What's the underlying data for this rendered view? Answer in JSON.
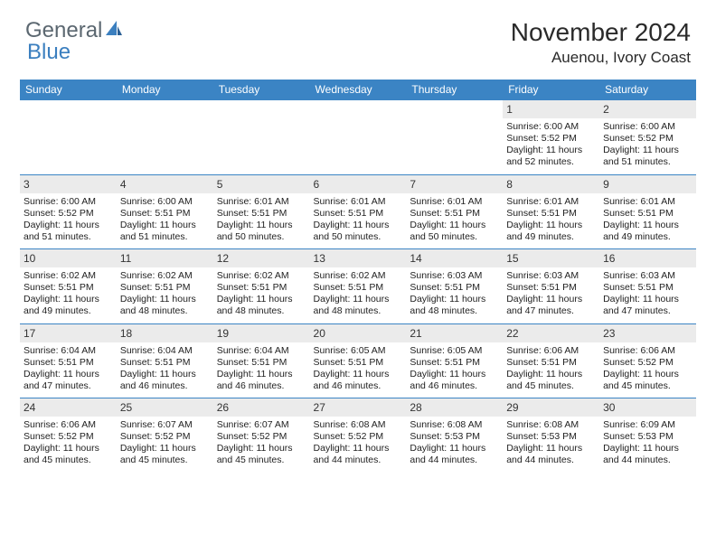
{
  "brand": {
    "text1": "General",
    "text2": "Blue"
  },
  "title": "November 2024",
  "location": "Auenou, Ivory Coast",
  "columns": [
    "Sunday",
    "Monday",
    "Tuesday",
    "Wednesday",
    "Thursday",
    "Friday",
    "Saturday"
  ],
  "colors": {
    "headerBg": "#3b84c4",
    "headerText": "#ffffff",
    "dayBarBg": "#ebebeb",
    "bodyText": "#222222",
    "rowBorder": "#3b84c4",
    "logoGray": "#5b6770",
    "logoBlue": "#3b7fbf"
  },
  "weeks": [
    [
      {
        "day": "",
        "rise": "",
        "set": "",
        "dayl": ""
      },
      {
        "day": "",
        "rise": "",
        "set": "",
        "dayl": ""
      },
      {
        "day": "",
        "rise": "",
        "set": "",
        "dayl": ""
      },
      {
        "day": "",
        "rise": "",
        "set": "",
        "dayl": ""
      },
      {
        "day": "",
        "rise": "",
        "set": "",
        "dayl": ""
      },
      {
        "day": "1",
        "rise": "Sunrise: 6:00 AM",
        "set": "Sunset: 5:52 PM",
        "dayl": "Daylight: 11 hours and 52 minutes."
      },
      {
        "day": "2",
        "rise": "Sunrise: 6:00 AM",
        "set": "Sunset: 5:52 PM",
        "dayl": "Daylight: 11 hours and 51 minutes."
      }
    ],
    [
      {
        "day": "3",
        "rise": "Sunrise: 6:00 AM",
        "set": "Sunset: 5:52 PM",
        "dayl": "Daylight: 11 hours and 51 minutes."
      },
      {
        "day": "4",
        "rise": "Sunrise: 6:00 AM",
        "set": "Sunset: 5:51 PM",
        "dayl": "Daylight: 11 hours and 51 minutes."
      },
      {
        "day": "5",
        "rise": "Sunrise: 6:01 AM",
        "set": "Sunset: 5:51 PM",
        "dayl": "Daylight: 11 hours and 50 minutes."
      },
      {
        "day": "6",
        "rise": "Sunrise: 6:01 AM",
        "set": "Sunset: 5:51 PM",
        "dayl": "Daylight: 11 hours and 50 minutes."
      },
      {
        "day": "7",
        "rise": "Sunrise: 6:01 AM",
        "set": "Sunset: 5:51 PM",
        "dayl": "Daylight: 11 hours and 50 minutes."
      },
      {
        "day": "8",
        "rise": "Sunrise: 6:01 AM",
        "set": "Sunset: 5:51 PM",
        "dayl": "Daylight: 11 hours and 49 minutes."
      },
      {
        "day": "9",
        "rise": "Sunrise: 6:01 AM",
        "set": "Sunset: 5:51 PM",
        "dayl": "Daylight: 11 hours and 49 minutes."
      }
    ],
    [
      {
        "day": "10",
        "rise": "Sunrise: 6:02 AM",
        "set": "Sunset: 5:51 PM",
        "dayl": "Daylight: 11 hours and 49 minutes."
      },
      {
        "day": "11",
        "rise": "Sunrise: 6:02 AM",
        "set": "Sunset: 5:51 PM",
        "dayl": "Daylight: 11 hours and 48 minutes."
      },
      {
        "day": "12",
        "rise": "Sunrise: 6:02 AM",
        "set": "Sunset: 5:51 PM",
        "dayl": "Daylight: 11 hours and 48 minutes."
      },
      {
        "day": "13",
        "rise": "Sunrise: 6:02 AM",
        "set": "Sunset: 5:51 PM",
        "dayl": "Daylight: 11 hours and 48 minutes."
      },
      {
        "day": "14",
        "rise": "Sunrise: 6:03 AM",
        "set": "Sunset: 5:51 PM",
        "dayl": "Daylight: 11 hours and 48 minutes."
      },
      {
        "day": "15",
        "rise": "Sunrise: 6:03 AM",
        "set": "Sunset: 5:51 PM",
        "dayl": "Daylight: 11 hours and 47 minutes."
      },
      {
        "day": "16",
        "rise": "Sunrise: 6:03 AM",
        "set": "Sunset: 5:51 PM",
        "dayl": "Daylight: 11 hours and 47 minutes."
      }
    ],
    [
      {
        "day": "17",
        "rise": "Sunrise: 6:04 AM",
        "set": "Sunset: 5:51 PM",
        "dayl": "Daylight: 11 hours and 47 minutes."
      },
      {
        "day": "18",
        "rise": "Sunrise: 6:04 AM",
        "set": "Sunset: 5:51 PM",
        "dayl": "Daylight: 11 hours and 46 minutes."
      },
      {
        "day": "19",
        "rise": "Sunrise: 6:04 AM",
        "set": "Sunset: 5:51 PM",
        "dayl": "Daylight: 11 hours and 46 minutes."
      },
      {
        "day": "20",
        "rise": "Sunrise: 6:05 AM",
        "set": "Sunset: 5:51 PM",
        "dayl": "Daylight: 11 hours and 46 minutes."
      },
      {
        "day": "21",
        "rise": "Sunrise: 6:05 AM",
        "set": "Sunset: 5:51 PM",
        "dayl": "Daylight: 11 hours and 46 minutes."
      },
      {
        "day": "22",
        "rise": "Sunrise: 6:06 AM",
        "set": "Sunset: 5:51 PM",
        "dayl": "Daylight: 11 hours and 45 minutes."
      },
      {
        "day": "23",
        "rise": "Sunrise: 6:06 AM",
        "set": "Sunset: 5:52 PM",
        "dayl": "Daylight: 11 hours and 45 minutes."
      }
    ],
    [
      {
        "day": "24",
        "rise": "Sunrise: 6:06 AM",
        "set": "Sunset: 5:52 PM",
        "dayl": "Daylight: 11 hours and 45 minutes."
      },
      {
        "day": "25",
        "rise": "Sunrise: 6:07 AM",
        "set": "Sunset: 5:52 PM",
        "dayl": "Daylight: 11 hours and 45 minutes."
      },
      {
        "day": "26",
        "rise": "Sunrise: 6:07 AM",
        "set": "Sunset: 5:52 PM",
        "dayl": "Daylight: 11 hours and 45 minutes."
      },
      {
        "day": "27",
        "rise": "Sunrise: 6:08 AM",
        "set": "Sunset: 5:52 PM",
        "dayl": "Daylight: 11 hours and 44 minutes."
      },
      {
        "day": "28",
        "rise": "Sunrise: 6:08 AM",
        "set": "Sunset: 5:53 PM",
        "dayl": "Daylight: 11 hours and 44 minutes."
      },
      {
        "day": "29",
        "rise": "Sunrise: 6:08 AM",
        "set": "Sunset: 5:53 PM",
        "dayl": "Daylight: 11 hours and 44 minutes."
      },
      {
        "day": "30",
        "rise": "Sunrise: 6:09 AM",
        "set": "Sunset: 5:53 PM",
        "dayl": "Daylight: 11 hours and 44 minutes."
      }
    ]
  ]
}
